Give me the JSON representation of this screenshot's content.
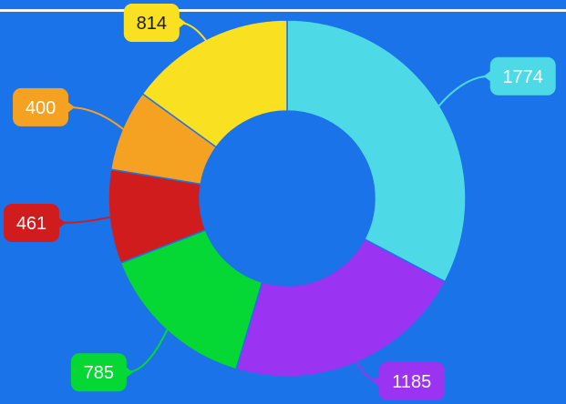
{
  "chart_data": {
    "type": "pie",
    "variant": "donut",
    "title": "",
    "legend": "none",
    "slices": [
      {
        "value": 1774,
        "label": "1774",
        "color": "#4dd9e6"
      },
      {
        "value": 1185,
        "label": "1185",
        "color": "#9b33f2"
      },
      {
        "value": 785,
        "label": "785",
        "color": "#05d834"
      },
      {
        "value": 461,
        "label": "461",
        "color": "#d01c1c"
      },
      {
        "value": 400,
        "label": "400",
        "color": "#f5a223"
      },
      {
        "value": 814,
        "label": "814",
        "color": "#f9e021"
      }
    ]
  },
  "colors": {
    "background": "#1a73e8",
    "top_rule": "#f2f5fb"
  }
}
